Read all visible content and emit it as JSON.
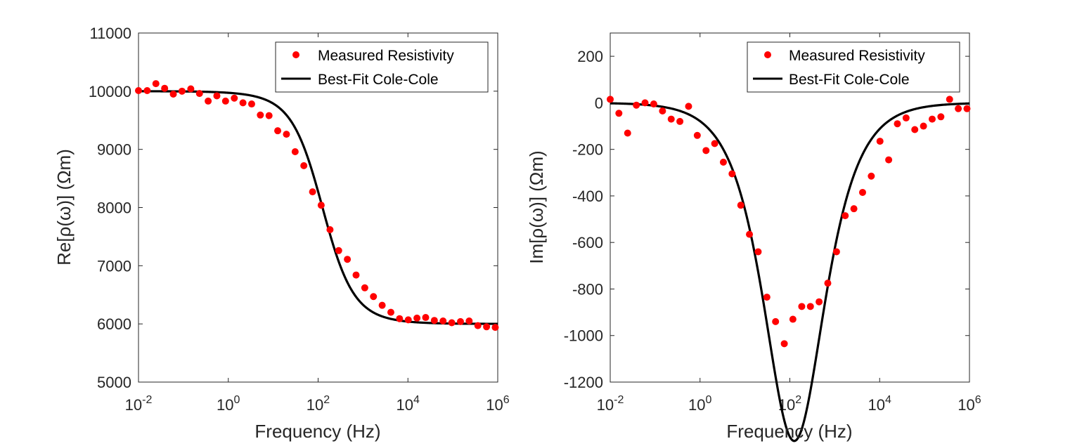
{
  "colors": {
    "data": "#ff0000",
    "fit": "#000000",
    "axis": "#262626"
  },
  "chart_data": [
    {
      "type": "scatter",
      "xscale": "log",
      "xlim": [
        0.01,
        1000000
      ],
      "ylim": [
        5000,
        11000
      ],
      "xticks": [
        {
          "base": "10",
          "exp": "-2"
        },
        {
          "base": "10",
          "exp": "0"
        },
        {
          "base": "10",
          "exp": "2"
        },
        {
          "base": "10",
          "exp": "4"
        },
        {
          "base": "10",
          "exp": "6"
        }
      ],
      "yticks": [
        "5000",
        "6000",
        "7000",
        "8000",
        "9000",
        "10000",
        "11000"
      ],
      "xlabel": "Frequency (Hz)",
      "ylabel": "Re[ρ(ω)] (Ωm)",
      "legend": {
        "position": "top-right",
        "entries": [
          "Measured Resistivity",
          "Best-Fit Cole-Cole"
        ]
      },
      "series": [
        {
          "name": "Measured Resistivity",
          "kind": "markers",
          "x": [
            0.01,
            0.0156,
            0.0244,
            0.0382,
            0.0596,
            0.0931,
            0.146,
            0.228,
            0.356,
            0.556,
            0.868,
            1.36,
            2.12,
            3.31,
            5.17,
            8.08,
            12.6,
            19.7,
            30.8,
            48.1,
            75.2,
            117,
            184,
            287,
            448,
            700,
            1094,
            1709,
            2669,
            4169,
            6512,
            10173,
            15892,
            24826,
            38782,
            60583,
            94640,
            147844,
            230956,
            360790,
            563618,
            880500
          ],
          "y": [
            10010,
            10010,
            10130,
            10050,
            9950,
            10000,
            10040,
            9960,
            9830,
            9920,
            9830,
            9880,
            9800,
            9780,
            9590,
            9580,
            9320,
            9260,
            8960,
            8720,
            8270,
            8040,
            7620,
            7260,
            7110,
            6840,
            6620,
            6470,
            6320,
            6200,
            6090,
            6070,
            6100,
            6110,
            6060,
            6050,
            6020,
            6040,
            6050,
            5970,
            5950,
            5940
          ]
        },
        {
          "name": "Best-Fit Cole-Cole",
          "kind": "line",
          "model": {
            "rho0": 10000,
            "chargeability": 0.4,
            "tau": 0.00127,
            "c": 0.8
          }
        }
      ]
    },
    {
      "type": "scatter",
      "xscale": "log",
      "xlim": [
        0.01,
        1000000
      ],
      "ylim": [
        -1200,
        300
      ],
      "xticks": [
        {
          "base": "10",
          "exp": "-2"
        },
        {
          "base": "10",
          "exp": "0"
        },
        {
          "base": "10",
          "exp": "2"
        },
        {
          "base": "10",
          "exp": "4"
        },
        {
          "base": "10",
          "exp": "6"
        }
      ],
      "yticks": [
        "-1200",
        "-1000",
        "-800",
        "-600",
        "-400",
        "-200",
        "0",
        "200"
      ],
      "xlabel": "Frequency (Hz)",
      "ylabel": "Im[ρ(ω)] (Ωm)",
      "legend": {
        "position": "top-right",
        "entries": [
          "Measured Resistivity",
          "Best-Fit Cole-Cole"
        ]
      },
      "series": [
        {
          "name": "Measured Resistivity",
          "kind": "markers",
          "x": [
            0.01,
            0.0156,
            0.0244,
            0.0382,
            0.0596,
            0.0931,
            0.146,
            0.228,
            0.356,
            0.556,
            0.868,
            1.36,
            2.12,
            3.31,
            5.17,
            8.08,
            12.6,
            19.7,
            30.8,
            48.1,
            75.2,
            117,
            184,
            287,
            448,
            700,
            1094,
            1709,
            2669,
            4169,
            6512,
            10173,
            15892,
            24826,
            38782,
            60583,
            94640,
            147844,
            230956,
            360790,
            563618,
            880500
          ],
          "y": [
            15,
            -45,
            -130,
            -10,
            0,
            -5,
            -35,
            -70,
            -80,
            -15,
            -140,
            -205,
            -175,
            -255,
            -305,
            -440,
            -565,
            -640,
            -835,
            -940,
            -1035,
            -930,
            -875,
            -875,
            -855,
            -775,
            -640,
            -485,
            -455,
            -385,
            -315,
            -165,
            -245,
            -90,
            -65,
            -115,
            -100,
            -70,
            -60,
            15,
            -25,
            -25
          ]
        },
        {
          "name": "Best-Fit Cole-Cole",
          "kind": "line",
          "model": {
            "rho0": 10000,
            "chargeability": 0.4,
            "tau": 0.00127,
            "c": 0.8
          }
        }
      ]
    }
  ]
}
